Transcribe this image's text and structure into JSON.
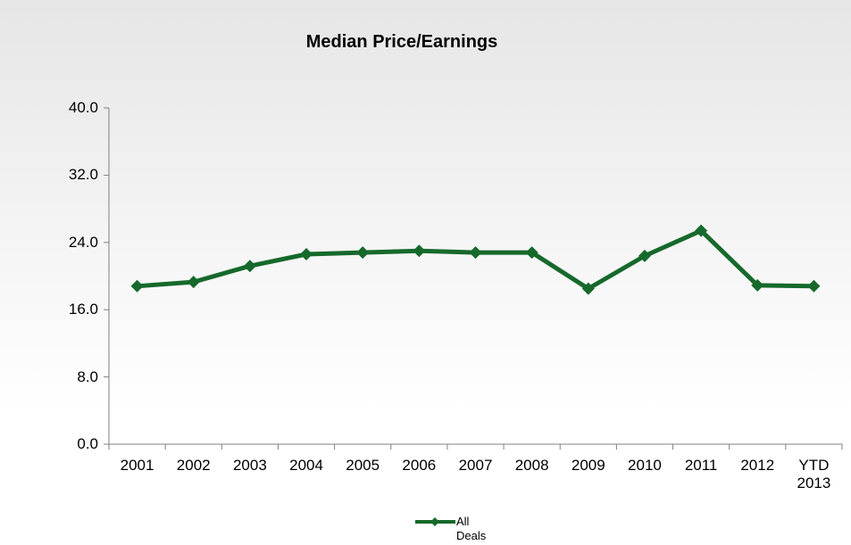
{
  "chart_data": {
    "type": "line",
    "title": "Median Price/Earnings",
    "categories": [
      "2001",
      "2002",
      "2003",
      "2004",
      "2005",
      "2006",
      "2007",
      "2008",
      "2009",
      "2010",
      "2011",
      "2012",
      "YTD 2013"
    ],
    "series": [
      {
        "name": "All Deals",
        "color": "#16692b",
        "values": [
          18.8,
          19.3,
          21.2,
          22.6,
          22.8,
          23.0,
          22.8,
          22.8,
          18.5,
          22.4,
          25.4,
          18.9,
          18.8
        ]
      }
    ],
    "ylim": [
      0,
      40
    ],
    "yticks": [
      {
        "value": 0,
        "label": "0.0"
      },
      {
        "value": 8,
        "label": "8.0"
      },
      {
        "value": 16,
        "label": "16.0"
      },
      {
        "value": 24,
        "label": "24.0"
      },
      {
        "value": 32,
        "label": "32.0"
      },
      {
        "value": 40,
        "label": "40.0"
      }
    ],
    "grid": false
  }
}
